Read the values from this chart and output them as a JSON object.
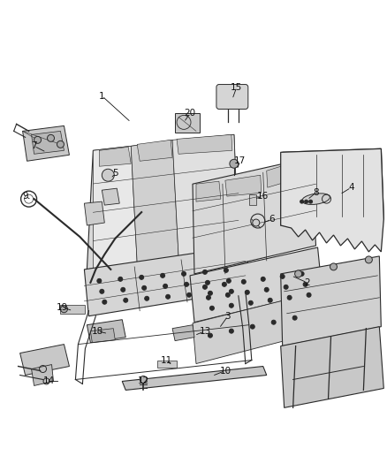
{
  "figsize": [
    4.38,
    5.33
  ],
  "dpi": 100,
  "bg": "#ffffff",
  "lc": "#2a2a2a",
  "lw": 0.7,
  "callouts": [
    [
      "1",
      115,
      108,
      142,
      133
    ],
    [
      "2",
      345,
      318,
      320,
      305
    ],
    [
      "3",
      235,
      355,
      260,
      368
    ],
    [
      "4",
      395,
      210,
      380,
      218
    ],
    [
      "5",
      128,
      195,
      138,
      202
    ],
    [
      "6",
      305,
      248,
      295,
      252
    ],
    [
      "7",
      40,
      165,
      55,
      173
    ],
    [
      "8",
      355,
      218,
      342,
      225
    ],
    [
      "9",
      30,
      222,
      42,
      228
    ],
    [
      "10",
      250,
      418,
      230,
      424
    ],
    [
      "11",
      185,
      408,
      193,
      415
    ],
    [
      "12",
      165,
      430,
      170,
      435
    ],
    [
      "13",
      230,
      375,
      218,
      380
    ],
    [
      "14",
      55,
      430,
      72,
      435
    ],
    [
      "15",
      265,
      100,
      260,
      113
    ],
    [
      "16",
      298,
      222,
      290,
      228
    ],
    [
      "17",
      270,
      182,
      268,
      195
    ],
    [
      "18",
      112,
      375,
      128,
      382
    ],
    [
      "19",
      72,
      348,
      88,
      354
    ],
    [
      "20",
      212,
      130,
      208,
      140
    ]
  ]
}
